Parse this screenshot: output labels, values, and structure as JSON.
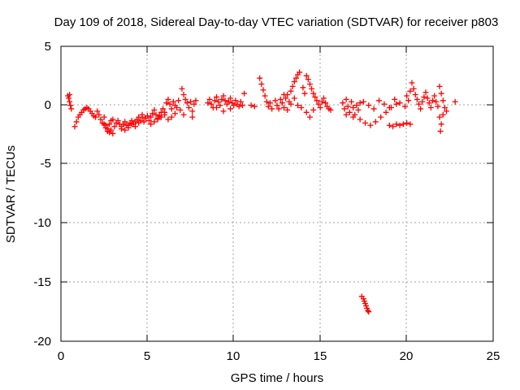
{
  "chart_data": {
    "type": "scatter",
    "title": "Day 109 of 2018, Sidereal Day-to-day VTEC variation (SDTVAR) for receiver p803",
    "xlabel": "GPS time / hours",
    "ylabel": "SDTVAR / TECUs",
    "xlim": [
      0,
      25
    ],
    "ylim": [
      -20,
      5
    ],
    "xticks": [
      "0",
      "5",
      "10",
      "15",
      "20",
      "25"
    ],
    "yticks": [
      "5",
      "0",
      "-5",
      "-10",
      "-15",
      "-20"
    ],
    "grid": true,
    "marker": "+",
    "color": "#ff0000",
    "series": [
      {
        "name": "SDTVAR",
        "points": [
          [
            0.4,
            0.8
          ],
          [
            0.45,
            0.6
          ],
          [
            0.5,
            0.3
          ],
          [
            0.55,
            0.0
          ],
          [
            0.6,
            -0.3
          ],
          [
            0.5,
            0.9
          ],
          [
            0.8,
            -1.8
          ],
          [
            0.9,
            -1.4
          ],
          [
            1.0,
            -1.0
          ],
          [
            1.1,
            -0.8
          ],
          [
            1.2,
            -0.6
          ],
          [
            1.3,
            -0.4
          ],
          [
            1.4,
            -0.3
          ],
          [
            1.5,
            -0.2
          ],
          [
            1.6,
            -0.3
          ],
          [
            1.7,
            -0.5
          ],
          [
            1.8,
            -0.7
          ],
          [
            1.9,
            -0.9
          ],
          [
            2.0,
            -1.0
          ],
          [
            2.1,
            -0.5
          ],
          [
            2.2,
            -0.8
          ],
          [
            2.3,
            -1.2
          ],
          [
            2.4,
            -1.5
          ],
          [
            2.5,
            -1.0
          ],
          [
            2.6,
            -1.7
          ],
          [
            2.7,
            -2.0
          ],
          [
            2.8,
            -2.3
          ],
          [
            2.9,
            -2.1
          ],
          [
            3.0,
            -2.4
          ],
          [
            3.1,
            -1.8
          ],
          [
            3.2,
            -1.5
          ],
          [
            3.3,
            -1.3
          ],
          [
            2.5,
            -1.6
          ],
          [
            2.6,
            -1.9
          ],
          [
            2.7,
            -2.2
          ],
          [
            2.8,
            -1.6
          ],
          [
            2.9,
            -1.3
          ],
          [
            3.0,
            -1.2
          ],
          [
            3.4,
            -1.6
          ],
          [
            3.5,
            -1.8
          ],
          [
            3.6,
            -1.6
          ],
          [
            3.7,
            -1.4
          ],
          [
            3.8,
            -1.7
          ],
          [
            3.9,
            -1.9
          ],
          [
            4.0,
            -1.5
          ],
          [
            4.1,
            -1.3
          ],
          [
            4.2,
            -1.6
          ],
          [
            4.3,
            -1.4
          ],
          [
            4.4,
            -1.2
          ],
          [
            4.5,
            -1.5
          ],
          [
            4.6,
            -1.3
          ],
          [
            4.7,
            -1.0
          ],
          [
            4.8,
            -1.4
          ],
          [
            4.9,
            -1.1
          ],
          [
            5.0,
            -0.9
          ],
          [
            3.5,
            -2.0
          ],
          [
            3.7,
            -2.1
          ],
          [
            3.9,
            -1.7
          ],
          [
            4.1,
            -1.6
          ],
          [
            4.3,
            -1.8
          ],
          [
            4.5,
            -1.0
          ],
          [
            4.7,
            -0.8
          ],
          [
            5.1,
            -1.3
          ],
          [
            5.2,
            -1.0
          ],
          [
            5.3,
            -0.7
          ],
          [
            5.4,
            -0.4
          ],
          [
            5.5,
            -0.8
          ],
          [
            5.6,
            -1.1
          ],
          [
            5.7,
            -0.9
          ],
          [
            5.8,
            -0.6
          ],
          [
            5.9,
            -0.3
          ],
          [
            6.0,
            -0.6
          ],
          [
            5.2,
            -1.6
          ],
          [
            5.4,
            -1.4
          ],
          [
            5.6,
            -1.2
          ],
          [
            5.8,
            -1.0
          ],
          [
            6.0,
            -0.8
          ],
          [
            6.2,
            -1.2
          ],
          [
            6.4,
            -1.0
          ],
          [
            6.6,
            -0.7
          ],
          [
            6.1,
            0.2
          ],
          [
            6.2,
            0.5
          ],
          [
            6.3,
            0.1
          ],
          [
            6.4,
            -0.3
          ],
          [
            6.5,
            0.3
          ],
          [
            6.6,
            0.0
          ],
          [
            6.7,
            -0.2
          ],
          [
            6.8,
            0.4
          ],
          [
            6.9,
            -0.4
          ],
          [
            7.0,
            1.4
          ],
          [
            7.1,
            0.9
          ],
          [
            7.2,
            0.5
          ],
          [
            7.3,
            0.2
          ],
          [
            7.4,
            -0.2
          ],
          [
            7.5,
            0.3
          ],
          [
            7.6,
            -0.5
          ],
          [
            7.7,
            0.1
          ],
          [
            7.8,
            0.4
          ],
          [
            7.6,
            -1.0
          ],
          [
            7.1,
            -0.8
          ],
          [
            8.5,
            0.2
          ],
          [
            8.6,
            0.5
          ],
          [
            8.7,
            0.1
          ],
          [
            8.8,
            -0.2
          ],
          [
            8.9,
            0.4
          ],
          [
            9.0,
            0.7
          ],
          [
            9.1,
            0.3
          ],
          [
            9.2,
            0.0
          ],
          [
            9.3,
            0.5
          ],
          [
            9.4,
            0.8
          ],
          [
            9.5,
            0.4
          ],
          [
            9.6,
            0.1
          ],
          [
            9.7,
            0.3
          ],
          [
            9.8,
            0.6
          ],
          [
            9.9,
            0.2
          ],
          [
            10.0,
            0.0
          ],
          [
            10.1,
            0.4
          ],
          [
            10.2,
            0.1
          ],
          [
            10.3,
            -0.1
          ],
          [
            10.4,
            0.3
          ],
          [
            10.5,
            0.0
          ],
          [
            10.6,
            1.0
          ],
          [
            9.0,
            -0.2
          ],
          [
            9.4,
            -0.5
          ],
          [
            9.8,
            -0.3
          ],
          [
            11.0,
            0.0
          ],
          [
            11.2,
            -0.1
          ],
          [
            11.5,
            2.3
          ],
          [
            11.6,
            1.8
          ],
          [
            11.7,
            1.3
          ],
          [
            11.8,
            0.8
          ],
          [
            11.9,
            0.3
          ],
          [
            12.0,
            -0.1
          ],
          [
            12.1,
            0.2
          ],
          [
            12.2,
            -0.3
          ],
          [
            12.4,
            0.4
          ],
          [
            12.5,
            0.0
          ],
          [
            12.6,
            -0.3
          ],
          [
            12.7,
            0.5
          ],
          [
            12.8,
            0.2
          ],
          [
            12.9,
            -0.2
          ],
          [
            13.0,
            0.6
          ],
          [
            13.1,
            0.9
          ],
          [
            13.2,
            0.3
          ],
          [
            13.3,
            1.2
          ],
          [
            13.4,
            1.6
          ],
          [
            13.5,
            2.0
          ],
          [
            13.6,
            2.3
          ],
          [
            13.7,
            2.6
          ],
          [
            13.8,
            2.8
          ],
          [
            12.9,
            0.9
          ],
          [
            13.1,
            -0.4
          ],
          [
            13.3,
            0.1
          ],
          [
            13.5,
            0.6
          ],
          [
            13.7,
            0.0
          ],
          [
            13.9,
            -0.2
          ],
          [
            14.0,
            1.5
          ],
          [
            14.1,
            1.0
          ],
          [
            14.2,
            2.5
          ],
          [
            14.3,
            2.2
          ],
          [
            14.4,
            1.8
          ],
          [
            14.5,
            1.4
          ],
          [
            14.6,
            1.0
          ],
          [
            14.7,
            0.7
          ],
          [
            14.8,
            0.4
          ],
          [
            14.9,
            0.1
          ],
          [
            15.0,
            -0.2
          ],
          [
            15.1,
            0.3
          ],
          [
            15.2,
            0.6
          ],
          [
            15.3,
            0.2
          ],
          [
            15.4,
            -0.1
          ],
          [
            15.5,
            -0.3
          ],
          [
            15.6,
            -0.4
          ],
          [
            14.2,
            -0.6
          ],
          [
            14.4,
            -1.0
          ],
          [
            14.6,
            -0.4
          ],
          [
            16.3,
            0.2
          ],
          [
            16.4,
            -0.3
          ],
          [
            16.5,
            0.5
          ],
          [
            16.6,
            -0.1
          ],
          [
            16.7,
            -0.6
          ],
          [
            16.8,
            0.3
          ],
          [
            16.9,
            -0.2
          ],
          [
            17.0,
            -0.8
          ],
          [
            17.1,
            0.0
          ],
          [
            17.2,
            -0.4
          ],
          [
            17.3,
            0.2
          ],
          [
            16.5,
            -0.8
          ],
          [
            16.9,
            -1.0
          ],
          [
            17.3,
            -1.2
          ],
          [
            17.6,
            -1.5
          ],
          [
            17.9,
            -1.7
          ],
          [
            18.2,
            -1.4
          ],
          [
            18.5,
            -1.0
          ],
          [
            18.8,
            -0.6
          ],
          [
            19.1,
            -0.2
          ],
          [
            19.4,
            0.1
          ],
          [
            17.5,
            0.3
          ],
          [
            17.8,
            0.0
          ],
          [
            18.1,
            -0.3
          ],
          [
            18.4,
            0.4
          ],
          [
            18.7,
            0.1
          ],
          [
            19.0,
            -0.2
          ],
          [
            19.3,
            0.5
          ],
          [
            19.6,
            0.2
          ],
          [
            19.9,
            -0.1
          ],
          [
            19.0,
            -1.7
          ],
          [
            19.2,
            -1.8
          ],
          [
            19.4,
            -1.6
          ],
          [
            19.6,
            -1.7
          ],
          [
            19.8,
            -1.6
          ],
          [
            20.0,
            -1.5
          ],
          [
            20.2,
            -1.6
          ],
          [
            20.0,
            0.8
          ],
          [
            20.1,
            0.4
          ],
          [
            20.2,
            1.2
          ],
          [
            20.3,
            1.9
          ],
          [
            20.4,
            1.4
          ],
          [
            20.5,
            0.9
          ],
          [
            20.6,
            0.5
          ],
          [
            20.7,
            0.1
          ],
          [
            20.8,
            -0.3
          ],
          [
            20.9,
            0.3
          ],
          [
            21.0,
            0.7
          ],
          [
            21.1,
            1.1
          ],
          [
            21.2,
            0.6
          ],
          [
            21.3,
            0.2
          ],
          [
            21.4,
            -0.2
          ],
          [
            21.5,
            0.4
          ],
          [
            21.6,
            0.8
          ],
          [
            21.7,
            0.3
          ],
          [
            21.8,
            -0.1
          ],
          [
            21.9,
            1.6
          ],
          [
            22.0,
            1.0
          ],
          [
            22.1,
            0.4
          ],
          [
            22.2,
            -0.2
          ],
          [
            21.9,
            -1.0
          ],
          [
            22.0,
            -1.6
          ],
          [
            21.95,
            -2.2
          ],
          [
            22.1,
            -0.8
          ],
          [
            22.3,
            -0.5
          ],
          [
            22.8,
            0.3
          ],
          [
            17.4,
            -16.2
          ],
          [
            17.5,
            -16.4
          ],
          [
            17.55,
            -16.6
          ],
          [
            17.6,
            -16.8
          ],
          [
            17.65,
            -17.0
          ],
          [
            17.7,
            -17.2
          ],
          [
            17.75,
            -17.4
          ],
          [
            17.8,
            -17.5
          ]
        ]
      }
    ]
  }
}
